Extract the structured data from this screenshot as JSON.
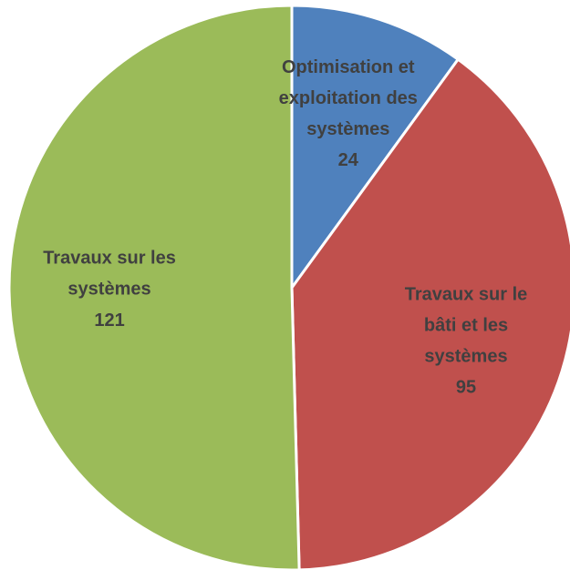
{
  "chart_data": {
    "type": "pie",
    "categories": [
      "Optimisation et exploitation des systèmes",
      "Travaux sur le bâti et les systèmes",
      "Travaux sur les systèmes"
    ],
    "values": [
      24,
      95,
      121
    ],
    "colors": [
      "#4f81bd",
      "#c0504d",
      "#9bbb59"
    ]
  }
}
